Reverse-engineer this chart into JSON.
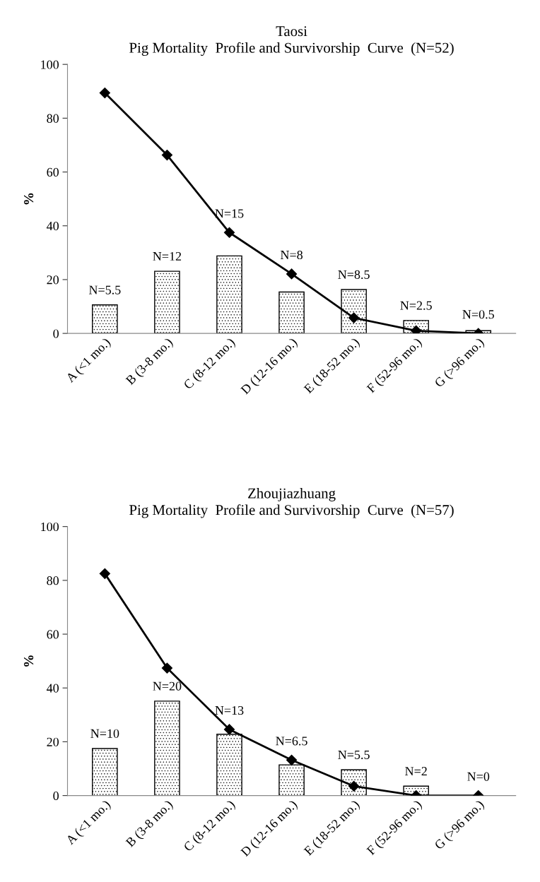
{
  "chart_data": [
    {
      "type": "bar",
      "title": "Taosi\nPig Mortality  Profile and Survivorship  Curve  (N=52)",
      "ylabel": "%",
      "categories": [
        "A (<1 mo.)",
        "B (3-8 mo.)",
        "C (8-12 mo.)",
        "D (12-16 mo.)",
        "E (18-52 mo.)",
        "F (52-96 mo.)",
        "G (>96 mo.)"
      ],
      "ylim": [
        0,
        100
      ],
      "yticks": [
        0,
        20,
        40,
        60,
        80,
        100
      ],
      "grid": false,
      "legend": false,
      "series": [
        {
          "color": "#000000",
          "values": [
            10.6,
            23.1,
            28.8,
            15.4,
            16.3,
            4.8,
            1.0
          ]
        },
        {
          "type": "line",
          "color": "#000000",
          "marker": "diamond",
          "line_style": "solid",
          "values": [
            89.4,
            66.3,
            37.5,
            22.1,
            5.8,
            1.0,
            0
          ]
        }
      ],
      "annotations": [
        {
          "text": "N=5.5",
          "x": "A (<1 mo.)",
          "y": 10.6
        },
        {
          "text": "N=12",
          "x": "B (3-8 mo.)",
          "y": 23.1
        },
        {
          "text": "N=15",
          "x": "C (8-12 mo.)",
          "y": 28.8
        },
        {
          "text": "N=8",
          "x": "D (12-16 mo.)",
          "y": 15.4
        },
        {
          "text": "N=8.5",
          "x": "E (18-52 mo.)",
          "y": 16.3
        },
        {
          "text": "N=2.5",
          "x": "F (52-96 mo.)",
          "y": 4.8
        },
        {
          "text": "N=0.5",
          "x": "G (>96 mo.)",
          "y": 1.0
        }
      ]
    },
    {
      "type": "bar",
      "title": "Zhoujiazhuang\nPig Mortality  Profile and Survivorship  Curve  (N=57)",
      "ylabel": "%",
      "categories": [
        "A (<1 mo.)",
        "B (3-8 mo.)",
        "C (8-12 mo.)",
        "D (12-16 mo.)",
        "E (18-52 mo.)",
        "F (52-96 mo.)",
        "G (>96 mo.)"
      ],
      "ylim": [
        0,
        100
      ],
      "yticks": [
        0,
        20,
        40,
        60,
        80,
        100
      ],
      "grid": false,
      "legend": false,
      "series": [
        {
          "color": "#000000",
          "values": [
            17.5,
            35.1,
            22.8,
            11.4,
            9.6,
            3.5,
            0
          ]
        },
        {
          "type": "line",
          "color": "#000000",
          "marker": "diamond",
          "line_style": "solid",
          "values": [
            82.5,
            47.4,
            24.6,
            13.2,
            3.5,
            0,
            0
          ]
        }
      ],
      "annotations": [
        {
          "text": "N=10",
          "x": "A (<1 mo.)",
          "y": 17.5
        },
        {
          "text": "N=20",
          "x": "B (3-8 mo.)",
          "y": 35.1
        },
        {
          "text": "N=13",
          "x": "C (8-12 mo.)",
          "y": 22.8
        },
        {
          "text": "N=6.5",
          "x": "D (12-16 mo.)",
          "y": 11.4
        },
        {
          "text": "N=5.5",
          "x": "E (18-52 mo.)",
          "y": 9.6
        },
        {
          "text": "N=2",
          "x": "F (52-96 mo.)",
          "y": 3.5
        },
        {
          "text": "N=0",
          "x": "G (>96 mo.)",
          "y": 0
        }
      ]
    }
  ]
}
